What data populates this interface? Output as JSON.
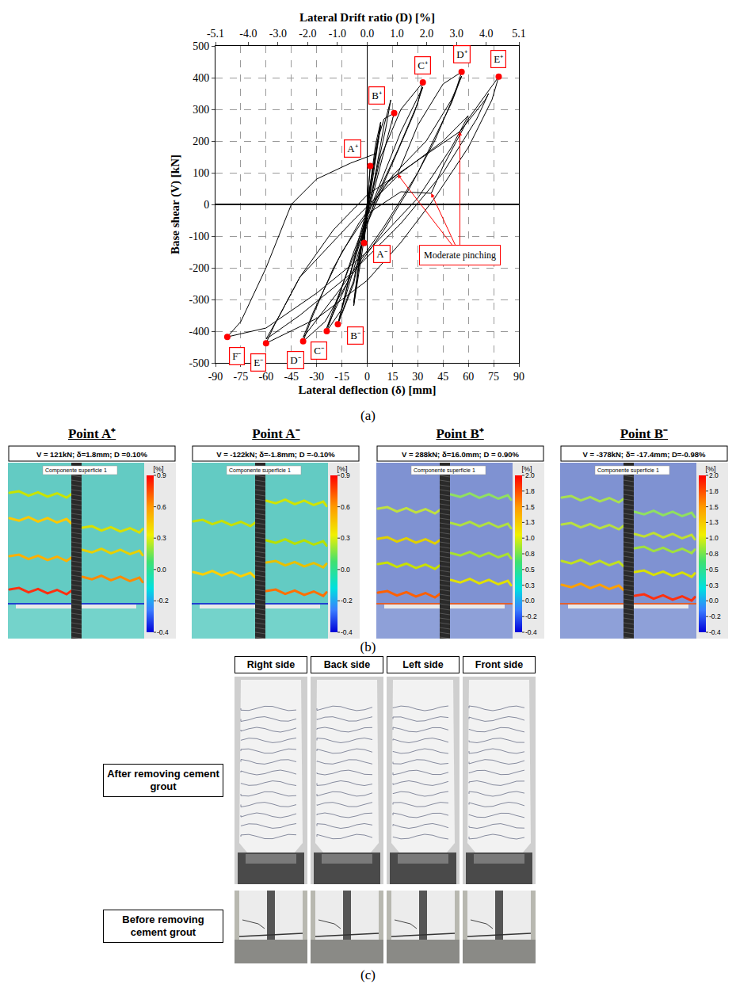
{
  "chart_data": {
    "type": "line",
    "x_label": "Lateral deflection (δ) [mm]",
    "x2_label": "Lateral Drift ratio (D) [%]",
    "y_label": "Base shear (V) [kN]",
    "xlim": [
      -90,
      90
    ],
    "xticks": [
      -90,
      -75,
      -60,
      -45,
      -30,
      -15,
      0,
      15,
      30,
      45,
      60,
      75,
      90
    ],
    "x2lim": [
      -5.1,
      5.1
    ],
    "x2ticks": [
      -5.1,
      {
        "value": -4,
        "label": "-4.0"
      },
      {
        "value": -3,
        "label": "-3.0"
      },
      {
        "value": -2,
        "label": "-2.0"
      },
      {
        "value": -1,
        "label": "-1.0"
      },
      {
        "value": 0,
        "label": "0.0"
      },
      {
        "value": 1,
        "label": "1.0"
      },
      {
        "value": 2,
        "label": "2.0"
      },
      {
        "value": 3,
        "label": "3.0"
      },
      {
        "value": 4,
        "label": "4.0"
      },
      5.1
    ],
    "ylim": [
      -500,
      500
    ],
    "yticks": [
      -500,
      -400,
      -300,
      -200,
      -100,
      0,
      100,
      200,
      300,
      400,
      500
    ],
    "grid": true,
    "series": [
      {
        "color": "#000000",
        "x": [
          0,
          1.8,
          0.5,
          -1.8,
          -0.5,
          1.8,
          0.4,
          -1.8,
          0,
          5,
          8,
          3,
          -3,
          -8,
          -3,
          3,
          8,
          2,
          -8,
          -2,
          6,
          10,
          16,
          12,
          5,
          0,
          -8,
          -17.4,
          -12,
          -4,
          3,
          10,
          14,
          11,
          2,
          -8,
          -17,
          -10,
          0,
          8,
          20,
          33,
          30,
          18,
          5,
          -5,
          -15,
          -24,
          -20,
          -8,
          5,
          20,
          33,
          28,
          15,
          0,
          -12,
          -24,
          -18,
          -5,
          10,
          18,
          30,
          45,
          56,
          52,
          40,
          25,
          10,
          -10,
          -25,
          -38,
          -33,
          -20,
          -5,
          15,
          35,
          50,
          56,
          50,
          30,
          10,
          -15,
          -38,
          -32,
          -15,
          0,
          20,
          38,
          45,
          60,
          78,
          74,
          60,
          40,
          20,
          0,
          -30,
          -60,
          -55,
          -40,
          -20,
          0,
          30,
          55,
          70,
          72,
          65,
          45,
          20,
          -10,
          -40,
          -60,
          -52,
          -40,
          -10,
          20,
          45,
          60,
          50,
          30,
          0,
          -30,
          -60,
          -83,
          -75,
          -60,
          -45,
          -30,
          -10,
          5
        ],
        "values": [
          0,
          121,
          30,
          -122,
          -25,
          115,
          25,
          -118,
          -10,
          190,
          260,
          90,
          -150,
          -320,
          -110,
          70,
          250,
          60,
          -310,
          -60,
          200,
          270,
          288,
          210,
          60,
          -40,
          -250,
          -378,
          -260,
          -90,
          40,
          250,
          330,
          240,
          20,
          -240,
          -370,
          -220,
          -30,
          150,
          300,
          385,
          320,
          170,
          20,
          -150,
          -330,
          -400,
          -340,
          -150,
          30,
          230,
          370,
          290,
          130,
          -50,
          -250,
          -390,
          -300,
          -120,
          60,
          95,
          250,
          380,
          418,
          350,
          200,
          50,
          -80,
          -230,
          -370,
          -432,
          -360,
          -200,
          -60,
          90,
          200,
          330,
          405,
          320,
          100,
          -70,
          -260,
          -420,
          -340,
          -150,
          -30,
          40,
          35,
          120,
          270,
          403,
          330,
          180,
          20,
          -120,
          -240,
          -360,
          -438,
          -380,
          -230,
          -80,
          30,
          140,
          230,
          330,
          350,
          270,
          100,
          -60,
          -220,
          -350,
          -425,
          -350,
          -230,
          -60,
          100,
          200,
          280,
          180,
          20,
          -150,
          -280,
          -390,
          -418,
          -370,
          -200,
          0,
          80,
          130,
          160
        ]
      }
    ],
    "points": {
      "color": "#ff0000",
      "labels": [
        "A⁺",
        "A⁻",
        "B⁺",
        "B⁻",
        "C⁺",
        "C⁻",
        "D⁺",
        "D⁻",
        "E⁺",
        "E⁻",
        "F⁻"
      ],
      "x": [
        1.8,
        -1.8,
        16,
        -17.4,
        33,
        -24,
        56,
        -38,
        78,
        -60,
        -83
      ],
      "values": [
        121,
        -122,
        288,
        -378,
        385,
        -400,
        418,
        -432,
        403,
        -438,
        -418
      ]
    },
    "annotations": [
      {
        "text": "Moderate pinching",
        "x": 55,
        "y": -160,
        "color": "#ff0000",
        "arrows_to": {
          "x": [
            18,
            38,
            55
          ],
          "y": [
            95,
            35,
            230
          ]
        }
      }
    ]
  },
  "captions": {
    "a": "(a)",
    "b": "(b)",
    "c": "(c)"
  },
  "panel_b": {
    "unit": "[%]",
    "surface_label": "Componente superficie 1",
    "panels": [
      {
        "title": "Point A⁺",
        "header": "V = 121kN; δ=1.8mm; D =0.10%",
        "colorbar_ticks": [
          "0.9",
          "0.6",
          "0.3",
          "0.0",
          "-0.2",
          "-0.4"
        ]
      },
      {
        "title": "Point A⁻",
        "header": "V = -122kN; δ=-1.8mm; D =-0.10%",
        "colorbar_ticks": [
          "0.9",
          "0.6",
          "0.3",
          "0.0",
          "-0.2",
          "-0.4"
        ]
      },
      {
        "title": "Point B⁺",
        "header": "V = 288kN; δ=16.0mm; D = 0.90%",
        "colorbar_ticks": [
          "2.0",
          "1.8",
          "1.5",
          "1.3",
          "1.0",
          "0.8",
          "0.5",
          "0.3",
          "0.0",
          "-0.2",
          "-0.4"
        ]
      },
      {
        "title": "Point B⁻",
        "header": "V = -378kN; δ= -17.4mm; D=-0.98%",
        "colorbar_ticks": [
          "2.0",
          "1.8",
          "1.5",
          "1.3",
          "1.0",
          "0.8",
          "0.5",
          "0.3",
          "0.0",
          "-0.2",
          "-0.4"
        ]
      }
    ]
  },
  "panel_c": {
    "columns": [
      "Right side",
      "Back side",
      "Left side",
      "Front side"
    ],
    "rows": [
      "After removing cement grout",
      "Before removing cement grout"
    ]
  }
}
